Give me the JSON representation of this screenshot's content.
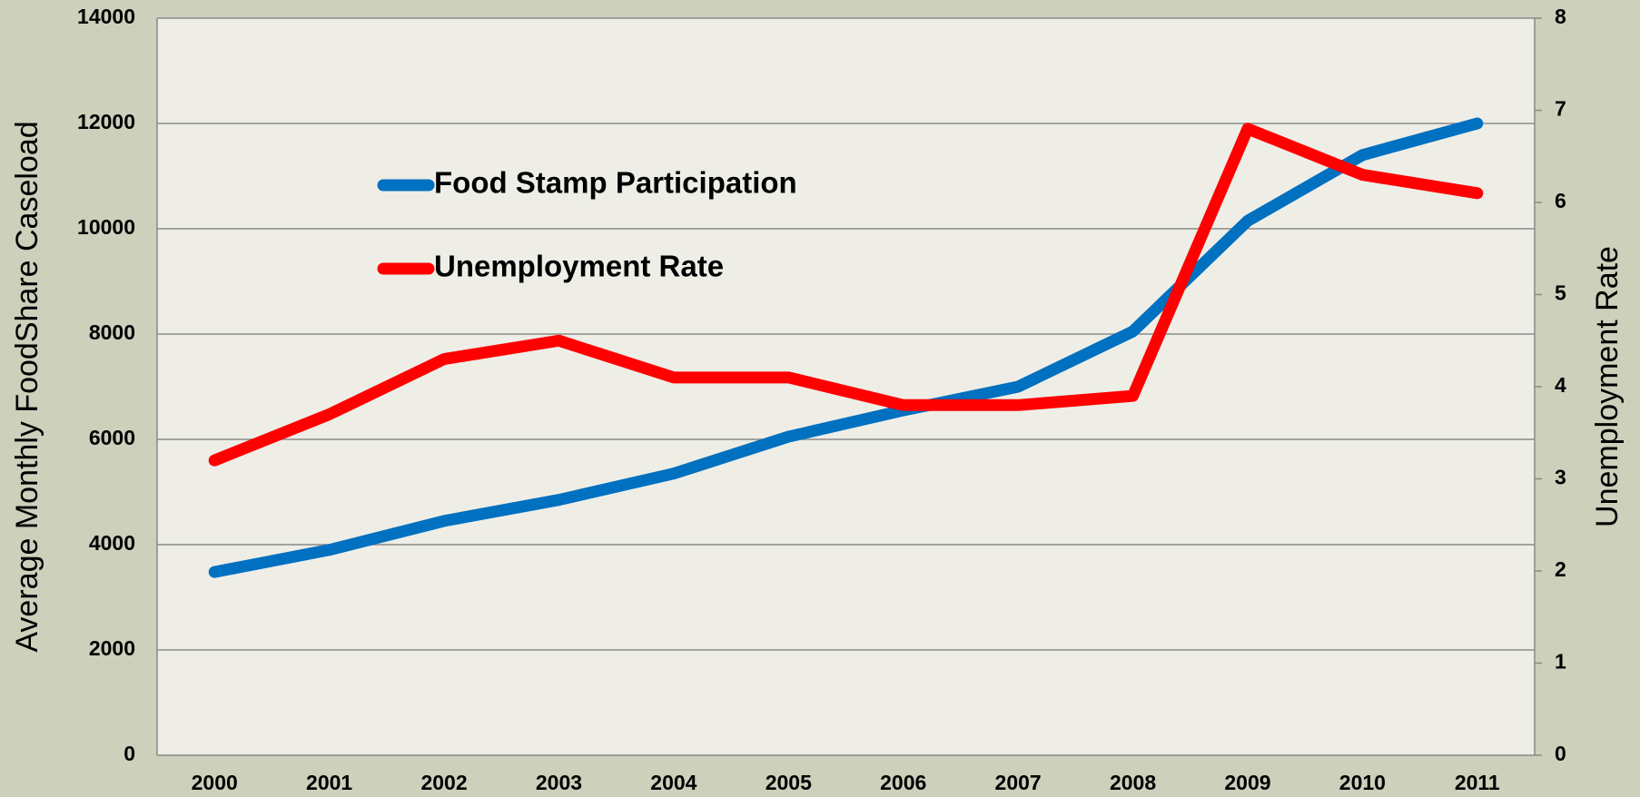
{
  "chart_data": {
    "type": "line",
    "categories": [
      "2000",
      "2001",
      "2002",
      "2003",
      "2004",
      "2005",
      "2006",
      "2007",
      "2008",
      "2009",
      "2010",
      "2011"
    ],
    "y_label": "Average Monthly FoodShare Caseload",
    "y2_label": "Unemployment Rate",
    "ylim": [
      0,
      14000
    ],
    "yticks": [
      0,
      2000,
      4000,
      6000,
      8000,
      10000,
      12000,
      14000
    ],
    "y2lim": [
      0,
      8
    ],
    "y2ticks": [
      0,
      1,
      2,
      3,
      4,
      5,
      6,
      7,
      8
    ],
    "grid": true,
    "legend": "upper-left",
    "series": [
      {
        "name": "Food Stamp Participation",
        "color": "#0070c0",
        "values": [
          3480,
          3900,
          4450,
          4850,
          5350,
          6050,
          6550,
          7000,
          8050,
          10150,
          11400,
          12000
        ]
      },
      {
        "name": "Unemployment Rate",
        "color": "#ff0000",
        "axis": "y2",
        "values": [
          3.2,
          3.7,
          4.3,
          4.5,
          4.1,
          4.1,
          3.8,
          3.8,
          3.9,
          6.8,
          6.3,
          6.1
        ]
      }
    ]
  }
}
